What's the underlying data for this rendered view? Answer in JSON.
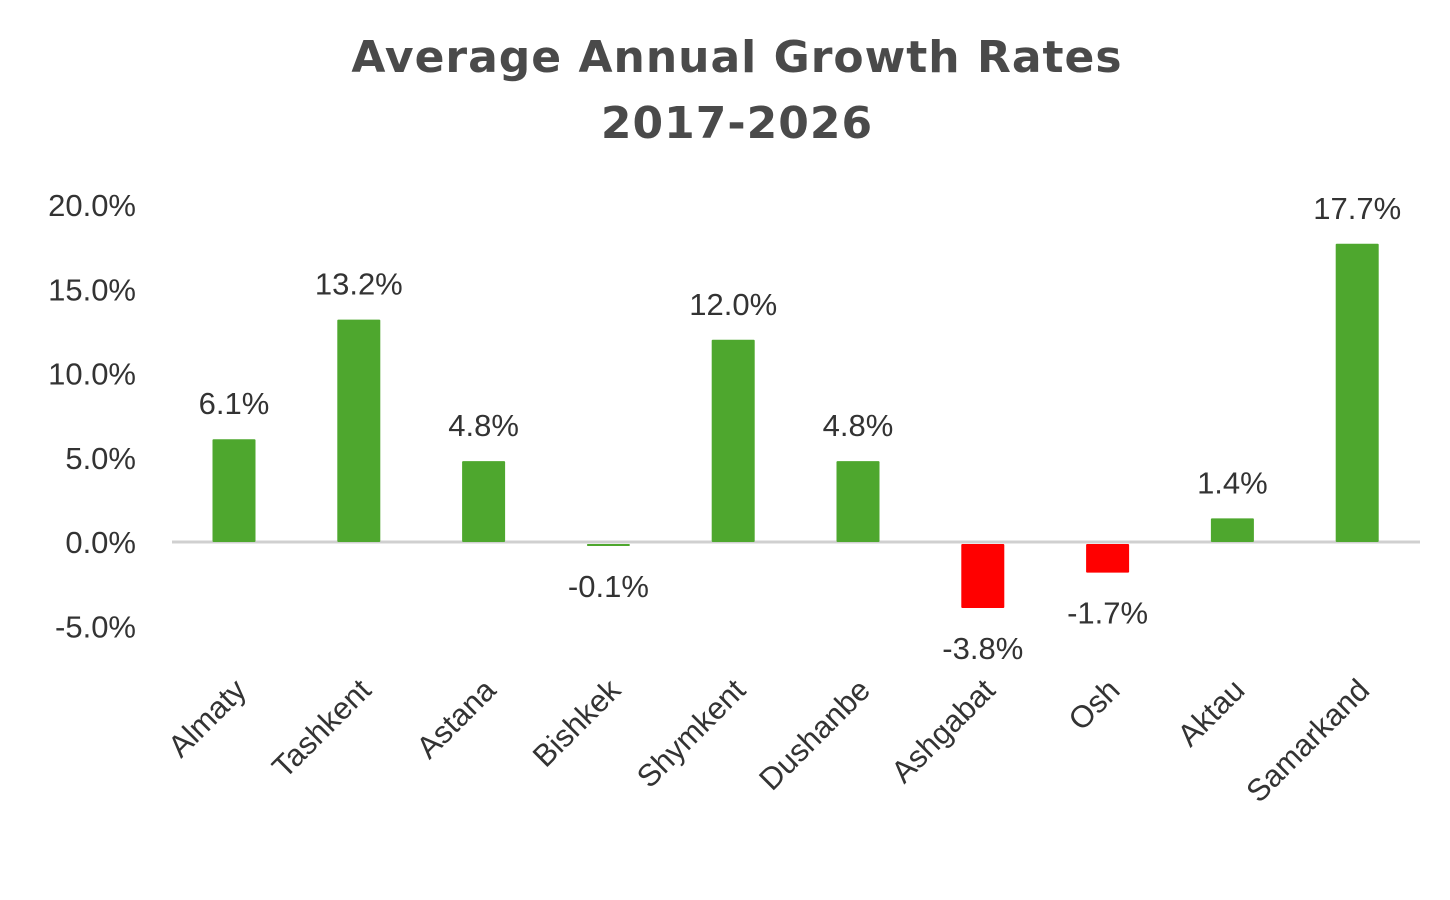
{
  "chart_data": {
    "type": "bar",
    "title": "Average Annual Growth Rates",
    "subtitle": "2017-2026",
    "xlabel": "",
    "ylabel": "",
    "categories": [
      "Almaty",
      "Tashkent",
      "Astana",
      "Bishkek",
      "Shymkent",
      "Dushanbe",
      "Ashgabat",
      "Osh",
      "Aktau",
      "Samarkand"
    ],
    "values": [
      6.1,
      13.2,
      4.8,
      -0.1,
      12.0,
      4.8,
      -3.8,
      -1.7,
      1.4,
      17.7
    ],
    "data_labels": [
      "6.1%",
      "13.2%",
      "4.8%",
      "-0.1%",
      "12.0%",
      "4.8%",
      "-3.8%",
      "-1.7%",
      "1.4%",
      "17.7%"
    ],
    "ylim": [
      -5,
      20
    ],
    "yticks": [
      20,
      15,
      10,
      5,
      0,
      -5
    ],
    "ytick_labels": [
      "20.0%",
      "15.0%",
      "10.0%",
      "5.0%",
      "0.0%",
      "-5.0%"
    ],
    "grid": false,
    "legend": "none",
    "colors": {
      "positive": "#4ea72e",
      "negative": "#ff0000",
      "zero_line": "#d0d0d0",
      "text": "#333333",
      "title": "#4a4a4a"
    }
  }
}
